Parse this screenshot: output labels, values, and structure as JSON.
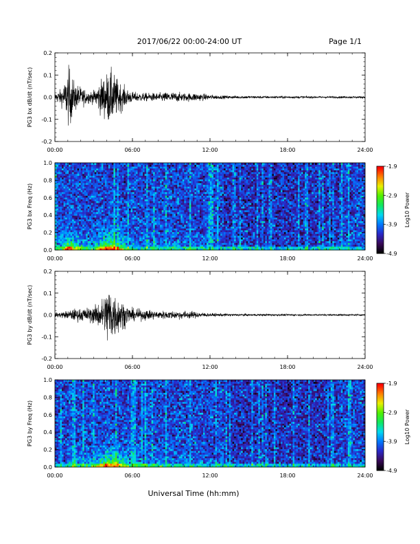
{
  "header": {
    "title": "2017/06/22  00:00-24:00 UT",
    "page": "Page 1/1"
  },
  "x_axis": {
    "label": "Universal Time (hh:mm)",
    "ticks": [
      "00:00",
      "06:00",
      "12:00",
      "18:00",
      "24:00"
    ]
  },
  "colorbar": {
    "label": "Log10 Power",
    "ticks": [
      "-1.9",
      "-2.9",
      "-3.9",
      "-4.9"
    ],
    "range": [
      -4.9,
      -1.9
    ],
    "colormap": [
      "#000000",
      "#3a0a5a",
      "#2a28c8",
      "#0078ff",
      "#00d8f0",
      "#10e860",
      "#50f000",
      "#e8f000",
      "#ff8000",
      "#ff0000"
    ]
  },
  "chart_data": [
    {
      "type": "line",
      "panel": "bx-waveform",
      "ylabel": "PG3 bx dB/dt (nT/sec)",
      "yticks": [
        "0.2",
        "0.1",
        "0.0",
        "-0.1",
        "-0.2"
      ],
      "ylim": [
        -0.2,
        0.2
      ],
      "xlim_hours": [
        0,
        24
      ],
      "series": [
        {
          "envelope_hours": [
            0,
            0.5,
            0.8,
            1.1,
            1.5,
            2.0,
            2.5,
            3.0,
            3.5,
            3.8,
            4.2,
            4.5,
            4.8,
            5.2,
            5.6,
            6.0,
            7.0,
            8.0,
            9.0,
            10.0,
            11.0,
            12.0,
            13.0,
            14.0,
            16.0,
            18.0,
            20.0,
            22.0,
            24.0
          ],
          "envelope_amplitude": [
            0.02,
            0.04,
            0.08,
            0.15,
            0.07,
            0.05,
            0.03,
            0.03,
            0.08,
            0.1,
            0.13,
            0.12,
            0.09,
            0.06,
            0.04,
            0.025,
            0.02,
            0.02,
            0.025,
            0.02,
            0.02,
            0.012,
            0.008,
            0.007,
            0.006,
            0.006,
            0.005,
            0.005,
            0.005
          ]
        }
      ]
    },
    {
      "type": "heatmap",
      "panel": "bx-spectrogram",
      "ylabel": "PG3 bx Freq (Hz)",
      "yticks": [
        "1.0",
        "0.8",
        "0.6",
        "0.4",
        "0.2",
        "0.0"
      ],
      "ylim": [
        0.0,
        1.0
      ],
      "xlim_hours": [
        0,
        24
      ]
    },
    {
      "type": "line",
      "panel": "by-waveform",
      "ylabel": "PG3 by dB/dt (nT/sec)",
      "yticks": [
        "0.2",
        "0.1",
        "0.0",
        "-0.1",
        "-0.2"
      ],
      "ylim": [
        -0.2,
        0.2
      ],
      "xlim_hours": [
        0,
        24
      ],
      "series": [
        {
          "envelope_hours": [
            0,
            0.5,
            1.0,
            1.5,
            2.0,
            2.5,
            3.0,
            3.5,
            3.8,
            4.0,
            4.2,
            4.5,
            4.8,
            5.0,
            5.5,
            6.0,
            7.0,
            8.0,
            9.0,
            10.0,
            11.0,
            12.0,
            14.0,
            16.0,
            18.0,
            20.0,
            22.0,
            24.0
          ],
          "envelope_amplitude": [
            0.01,
            0.015,
            0.02,
            0.03,
            0.03,
            0.035,
            0.04,
            0.07,
            0.09,
            0.13,
            0.16,
            0.12,
            0.1,
            0.08,
            0.05,
            0.03,
            0.025,
            0.02,
            0.02,
            0.02,
            0.015,
            0.008,
            0.006,
            0.005,
            0.005,
            0.004,
            0.004,
            0.004
          ]
        }
      ]
    },
    {
      "type": "heatmap",
      "panel": "by-spectrogram",
      "ylabel": "PG3 by Freq (Hz)",
      "yticks": [
        "1.0",
        "0.8",
        "0.6",
        "0.4",
        "0.2",
        "0.0"
      ],
      "ylim": [
        0.0,
        1.0
      ],
      "xlim_hours": [
        0,
        24
      ]
    }
  ]
}
